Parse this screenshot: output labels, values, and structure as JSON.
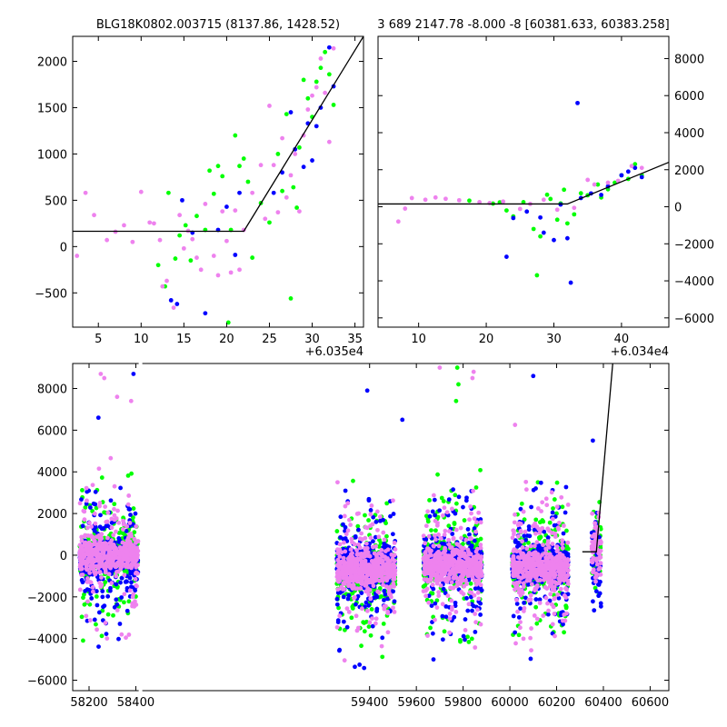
{
  "figure": {
    "background": "#ffffff",
    "colors": {
      "green": "#00ff00",
      "blue": "#0000ff",
      "violet": "#ee82ee",
      "model": "#000000"
    }
  },
  "chart_data": [
    {
      "type": "scatter",
      "id": "top-left",
      "title": "BLG18K0802.003715 (8137.86, 1428.52)",
      "xlabel": "",
      "ylabel": "",
      "x_offset_label": "+6.035e4",
      "xlim": [
        2,
        36
      ],
      "ylim": [
        -870,
        2270
      ],
      "xticks": [
        5,
        10,
        15,
        20,
        25,
        30,
        35
      ],
      "yticks": [
        -500,
        0,
        500,
        1000,
        1500,
        2000
      ],
      "ytick_side": "left",
      "model_line": {
        "x": [
          2,
          22,
          36
        ],
        "y": [
          165,
          165,
          2270
        ]
      },
      "series": [
        {
          "color": "green",
          "points": [
            [
              12.0,
              -200
            ],
            [
              12.8,
              -430
            ],
            [
              13.2,
              580
            ],
            [
              14.0,
              -130
            ],
            [
              14.5,
              120
            ],
            [
              15.2,
              230
            ],
            [
              15.8,
              -150
            ],
            [
              16.5,
              330
            ],
            [
              17.5,
              180
            ],
            [
              18.0,
              820
            ],
            [
              18.5,
              570
            ],
            [
              19.0,
              870
            ],
            [
              19.5,
              760
            ],
            [
              20.2,
              -820
            ],
            [
              20.5,
              180
            ],
            [
              21.0,
              1200
            ],
            [
              21.5,
              870
            ],
            [
              22.0,
              950
            ],
            [
              22.5,
              700
            ],
            [
              23.0,
              -120
            ],
            [
              24.0,
              470
            ],
            [
              25.0,
              260
            ],
            [
              26.0,
              1000
            ],
            [
              26.5,
              600
            ],
            [
              27.0,
              1430
            ],
            [
              27.5,
              -560
            ],
            [
              27.8,
              640
            ],
            [
              28.2,
              420
            ],
            [
              28.5,
              1070
            ],
            [
              29.0,
              1800
            ],
            [
              29.5,
              1600
            ],
            [
              30.0,
              1400
            ],
            [
              30.5,
              1780
            ],
            [
              31.0,
              1930
            ],
            [
              31.5,
              2100
            ],
            [
              32.0,
              1860
            ],
            [
              32.5,
              1530
            ]
          ]
        },
        {
          "color": "blue",
          "points": [
            [
              13.5,
              -580
            ],
            [
              14.2,
              -620
            ],
            [
              14.8,
              500
            ],
            [
              16.0,
              150
            ],
            [
              17.5,
              -720
            ],
            [
              19.0,
              180
            ],
            [
              20.0,
              430
            ],
            [
              21.0,
              -90
            ],
            [
              21.5,
              580
            ],
            [
              25.5,
              580
            ],
            [
              26.5,
              800
            ],
            [
              27.5,
              1450
            ],
            [
              28.0,
              1050
            ],
            [
              29.0,
              860
            ],
            [
              29.5,
              1330
            ],
            [
              30.0,
              930
            ],
            [
              30.5,
              1300
            ],
            [
              31.0,
              1500
            ],
            [
              32.0,
              2150
            ],
            [
              32.5,
              1730
            ]
          ]
        },
        {
          "color": "violet",
          "points": [
            [
              2.5,
              -100
            ],
            [
              3.5,
              580
            ],
            [
              4.5,
              340
            ],
            [
              6.0,
              70
            ],
            [
              7.0,
              160
            ],
            [
              8.0,
              230
            ],
            [
              9.0,
              50
            ],
            [
              10.0,
              590
            ],
            [
              11.0,
              260
            ],
            [
              11.5,
              250
            ],
            [
              12.2,
              70
            ],
            [
              12.5,
              -430
            ],
            [
              13.0,
              -370
            ],
            [
              13.8,
              -660
            ],
            [
              14.5,
              340
            ],
            [
              15.0,
              -20
            ],
            [
              15.5,
              170
            ],
            [
              16.0,
              80
            ],
            [
              16.5,
              -120
            ],
            [
              17.0,
              -250
            ],
            [
              17.5,
              460
            ],
            [
              18.5,
              -100
            ],
            [
              19.0,
              -310
            ],
            [
              19.5,
              380
            ],
            [
              20.0,
              60
            ],
            [
              20.5,
              -280
            ],
            [
              21.0,
              390
            ],
            [
              21.5,
              -250
            ],
            [
              22.0,
              180
            ],
            [
              23.0,
              580
            ],
            [
              24.0,
              880
            ],
            [
              24.5,
              300
            ],
            [
              25.0,
              1520
            ],
            [
              25.5,
              880
            ],
            [
              26.0,
              370
            ],
            [
              26.5,
              1170
            ],
            [
              27.0,
              530
            ],
            [
              27.5,
              770
            ],
            [
              28.0,
              1000
            ],
            [
              28.5,
              380
            ],
            [
              29.0,
              1200
            ],
            [
              29.5,
              1480
            ],
            [
              30.0,
              1630
            ],
            [
              30.5,
              1720
            ],
            [
              31.0,
              2030
            ],
            [
              31.5,
              1660
            ],
            [
              32.0,
              1130
            ],
            [
              32.5,
              2140
            ]
          ]
        }
      ]
    },
    {
      "type": "scatter",
      "id": "top-right",
      "title": "3 689 2147.78 -8.000 -8 [60381.633, 60383.258]",
      "xlabel": "",
      "ylabel": "",
      "x_offset_label": "+6.034e4",
      "xlim": [
        4,
        47
      ],
      "ylim": [
        -6500,
        9200
      ],
      "xticks": [
        10,
        20,
        30,
        40
      ],
      "yticks": [
        -6000,
        -4000,
        -2000,
        0,
        2000,
        4000,
        6000,
        8000
      ],
      "ytick_side": "right",
      "model_line": {
        "x": [
          4,
          32,
          47
        ],
        "y": [
          150,
          150,
          2400
        ]
      },
      "series": [
        {
          "color": "green",
          "points": [
            [
              17.5,
              330
            ],
            [
              21.0,
              170
            ],
            [
              22.0,
              240
            ],
            [
              23.0,
              -200
            ],
            [
              24.0,
              -520
            ],
            [
              25.5,
              250
            ],
            [
              27.0,
              -1200
            ],
            [
              27.5,
              -3700
            ],
            [
              28.0,
              -1600
            ],
            [
              29.0,
              650
            ],
            [
              29.5,
              420
            ],
            [
              30.5,
              -700
            ],
            [
              31.0,
              180
            ],
            [
              31.5,
              920
            ],
            [
              32.0,
              -900
            ],
            [
              33.0,
              -410
            ],
            [
              34.0,
              730
            ],
            [
              35.0,
              620
            ],
            [
              36.5,
              1200
            ],
            [
              37.0,
              500
            ],
            [
              38.0,
              940
            ],
            [
              39.0,
              1300
            ],
            [
              40.0,
              1700
            ],
            [
              41.0,
              1500
            ],
            [
              42.0,
              2300
            ],
            [
              43.0,
              1700
            ]
          ]
        },
        {
          "color": "blue",
          "points": [
            [
              23.0,
              -2700
            ],
            [
              24.0,
              -610
            ],
            [
              26.0,
              -260
            ],
            [
              28.0,
              -580
            ],
            [
              28.5,
              -1400
            ],
            [
              29.0,
              -6600
            ],
            [
              30.0,
              -1800
            ],
            [
              31.0,
              120
            ],
            [
              32.0,
              -1700
            ],
            [
              32.5,
              -4100
            ],
            [
              33.5,
              5600
            ],
            [
              34.0,
              470
            ],
            [
              35.5,
              720
            ],
            [
              37.0,
              640
            ],
            [
              38.0,
              1100
            ],
            [
              40.0,
              1700
            ],
            [
              41.0,
              1900
            ],
            [
              42.0,
              2100
            ],
            [
              43.0,
              1600
            ]
          ]
        },
        {
          "color": "violet",
          "points": [
            [
              7.0,
              -800
            ],
            [
              8.0,
              -100
            ],
            [
              9.0,
              470
            ],
            [
              11.0,
              380
            ],
            [
              12.5,
              500
            ],
            [
              14.0,
              430
            ],
            [
              16.0,
              350
            ],
            [
              19.0,
              250
            ],
            [
              20.5,
              200
            ],
            [
              22.5,
              280
            ],
            [
              25.0,
              -120
            ],
            [
              26.5,
              150
            ],
            [
              28.5,
              380
            ],
            [
              30.5,
              -160
            ],
            [
              33.0,
              -60
            ],
            [
              35.0,
              1450
            ],
            [
              36.0,
              1200
            ],
            [
              38.0,
              1300
            ],
            [
              39.5,
              1400
            ],
            [
              41.5,
              2200
            ],
            [
              43.0,
              2100
            ]
          ]
        }
      ]
    },
    {
      "type": "scatter",
      "id": "bottom",
      "title": "",
      "xlabel": "",
      "ylabel": "",
      "xlim": [
        58130,
        60680
      ],
      "ylim": [
        -6500,
        9200
      ],
      "xticks": [
        58200,
        58400,
        59400,
        59600,
        59800,
        60000,
        60200,
        60400,
        60600
      ],
      "yticks": [
        -6000,
        -4000,
        -2000,
        0,
        2000,
        4000,
        6000,
        8000
      ],
      "ytick_side": "left",
      "axis_break_x": 58420,
      "seasons": [
        {
          "x": [
            58160,
            58410
          ],
          "centers": {
            "green": 0,
            "blue": -200,
            "violet": 0
          }
        },
        {
          "x": [
            59260,
            59510
          ],
          "centers": {
            "green": -800,
            "blue": -500,
            "violet": -700
          }
        },
        {
          "x": [
            59630,
            59880
          ],
          "centers": {
            "green": -300,
            "blue": -300,
            "violet": -500
          }
        },
        {
          "x": [
            60010,
            60250
          ],
          "centers": {
            "green": -500,
            "blue": -500,
            "violet": -600
          }
        },
        {
          "x": [
            60350,
            60390
          ],
          "centers": {
            "green": 400,
            "blue": -200,
            "violet": 300
          }
        }
      ],
      "model_line": {
        "x": [
          60310,
          60370,
          60440
        ],
        "y": [
          165,
          165,
          9200
        ]
      },
      "outliers": {
        "violet": [
          [
            58250,
            8700
          ],
          [
            58265,
            8500
          ],
          [
            58320,
            7600
          ],
          [
            58380,
            7400
          ],
          [
            59700,
            9000
          ],
          [
            59845,
            8800
          ],
          [
            59840,
            8500
          ]
        ],
        "blue": [
          [
            58240,
            6600
          ],
          [
            58390,
            8700
          ],
          [
            59390,
            7900
          ],
          [
            59540,
            6500
          ],
          [
            60355,
            5500
          ],
          [
            60100,
            8600
          ]
        ],
        "green": [
          [
            59775,
            9000
          ],
          [
            59780,
            8200
          ],
          [
            59770,
            7400
          ]
        ]
      }
    }
  ]
}
